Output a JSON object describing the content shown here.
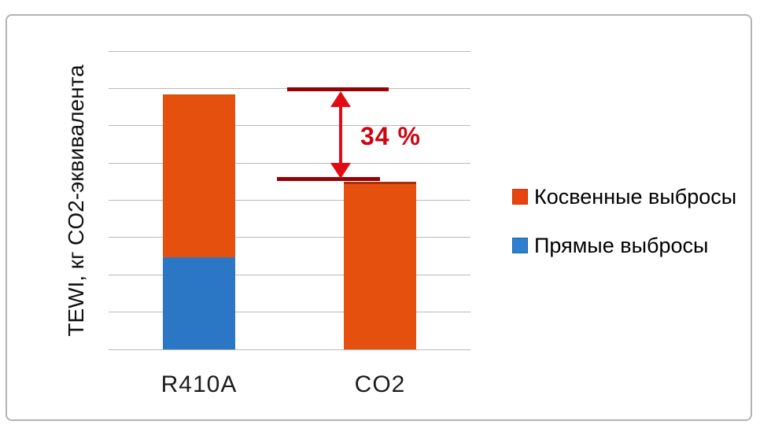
{
  "chart_data": {
    "type": "bar",
    "stacked": true,
    "title": "",
    "ylabel": "TEWI, кг CO2-эквивалента",
    "xlabel": "",
    "categories": [
      "R410A",
      "CO2"
    ],
    "series": [
      {
        "name": "Прямые выбросы",
        "color": "#2b77c5",
        "stack": "bottom",
        "values": [
          2.46,
          0
        ]
      },
      {
        "name": "Косвенные выбросы",
        "color": "#e6500f",
        "stack": "top",
        "values": [
          4.38,
          4.49
        ]
      }
    ],
    "totals": [
      6.84,
      4.49
    ],
    "ylim": [
      0,
      8
    ],
    "value_scale": "relative units; y axis has no numeric tick labels, one horizontal gridline step = 1 unit",
    "grid": "horizontal gridlines on, no vertical gridlines",
    "legend_position": "right, outside plot area",
    "annotation": {
      "label": "34 %",
      "description_visible": "double-headed red arrow between the tops of the two bars"
    }
  },
  "legend": {
    "items": [
      {
        "label": "Косвенные выбросы",
        "color": "#e8440d",
        "border": "#c43b00"
      },
      {
        "label": "Прямые выбросы",
        "color": "#2e7fd0",
        "border": "#1f63ad"
      }
    ]
  },
  "colors": {
    "indirect_orange": "#e6500f",
    "direct_blue": "#2b77c5",
    "annotation_red": "#e30b13",
    "annotation_dark_red": "#950104",
    "annotation_text_red": "#cb0612",
    "gridline_gray": "#b9b9b9",
    "frame_gray": "#b3b3b3",
    "text_black": "#1c1c1c"
  }
}
